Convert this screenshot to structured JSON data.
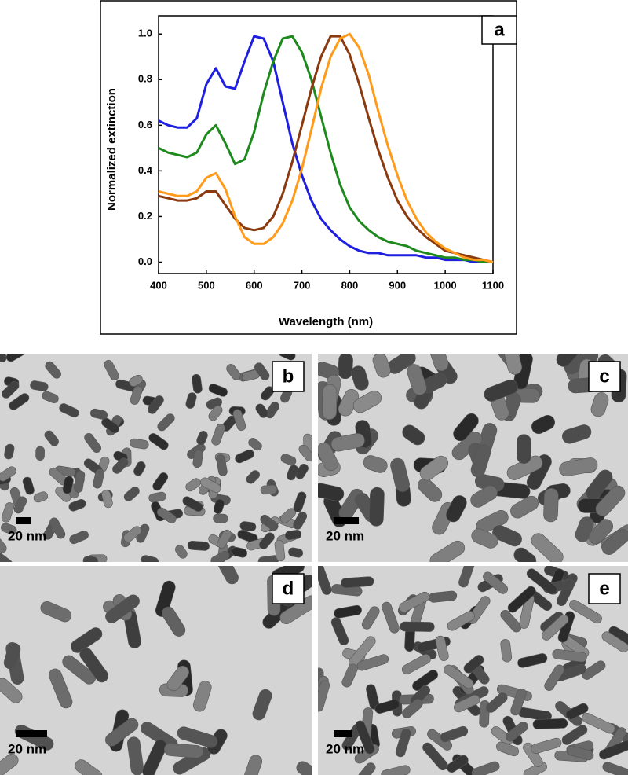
{
  "chart_data": {
    "type": "line",
    "annotation": "a",
    "xlabel": "Wavelength (nm)",
    "ylabel": "Normalized extinction",
    "x": [
      400,
      420,
      440,
      460,
      480,
      500,
      520,
      540,
      560,
      580,
      600,
      620,
      640,
      660,
      680,
      700,
      720,
      740,
      760,
      780,
      800,
      820,
      840,
      860,
      880,
      900,
      920,
      940,
      960,
      980,
      1000,
      1020,
      1040,
      1060,
      1080,
      1100
    ],
    "series": [
      {
        "color": "#1f1fe0",
        "values": [
          0.62,
          0.6,
          0.59,
          0.59,
          0.63,
          0.78,
          0.85,
          0.77,
          0.76,
          0.88,
          0.99,
          0.98,
          0.88,
          0.7,
          0.52,
          0.38,
          0.27,
          0.19,
          0.14,
          0.1,
          0.07,
          0.05,
          0.04,
          0.04,
          0.03,
          0.03,
          0.03,
          0.03,
          0.02,
          0.02,
          0.01,
          0.01,
          0.01,
          0.0,
          0.0,
          0.0
        ]
      },
      {
        "color": "#1e8a1e",
        "values": [
          0.5,
          0.48,
          0.47,
          0.46,
          0.48,
          0.56,
          0.6,
          0.52,
          0.43,
          0.45,
          0.57,
          0.74,
          0.88,
          0.98,
          0.99,
          0.92,
          0.8,
          0.64,
          0.48,
          0.34,
          0.24,
          0.18,
          0.14,
          0.11,
          0.09,
          0.08,
          0.07,
          0.05,
          0.04,
          0.03,
          0.02,
          0.02,
          0.01,
          0.01,
          0.0,
          0.0
        ]
      },
      {
        "color": "#8b3a0f",
        "values": [
          0.29,
          0.28,
          0.27,
          0.27,
          0.28,
          0.31,
          0.31,
          0.25,
          0.19,
          0.15,
          0.14,
          0.15,
          0.2,
          0.3,
          0.44,
          0.6,
          0.76,
          0.9,
          0.99,
          0.99,
          0.91,
          0.78,
          0.63,
          0.49,
          0.37,
          0.27,
          0.2,
          0.15,
          0.11,
          0.08,
          0.05,
          0.04,
          0.03,
          0.02,
          0.01,
          0.0
        ]
      },
      {
        "color": "#ff9a1a",
        "values": [
          0.31,
          0.3,
          0.29,
          0.29,
          0.31,
          0.37,
          0.39,
          0.32,
          0.2,
          0.11,
          0.08,
          0.08,
          0.11,
          0.17,
          0.27,
          0.41,
          0.58,
          0.76,
          0.9,
          0.98,
          1.0,
          0.94,
          0.82,
          0.66,
          0.51,
          0.38,
          0.27,
          0.19,
          0.13,
          0.09,
          0.06,
          0.04,
          0.02,
          0.01,
          0.01,
          0.0
        ]
      }
    ],
    "xlim": [
      400,
      1100
    ],
    "xticks": [
      400,
      500,
      600,
      700,
      800,
      900,
      1000,
      1100
    ],
    "ylim": [
      -0.05,
      1.08
    ],
    "yticks": [
      {
        "value": 0,
        "label": "0.0"
      },
      0.2,
      0.4,
      0.6,
      0.8,
      {
        "value": 1,
        "label": "1.0"
      }
    ]
  },
  "panels": [
    {
      "label": "b",
      "scale_bar": "20 nm"
    },
    {
      "label": "c",
      "scale_bar": "20 nm"
    },
    {
      "label": "d",
      "scale_bar": "20 nm"
    },
    {
      "label": "e",
      "scale_bar": "20 nm"
    }
  ]
}
